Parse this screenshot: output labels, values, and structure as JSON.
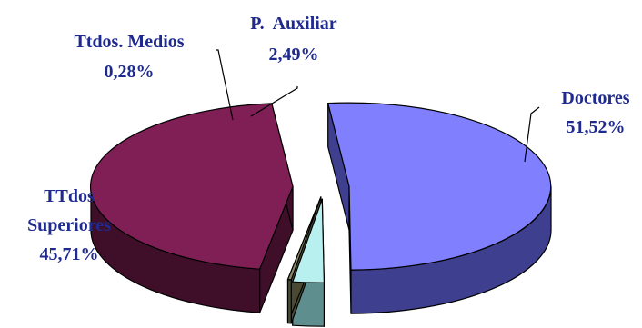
{
  "chart_data": {
    "type": "pie",
    "title": "",
    "slices": [
      {
        "label_lines": [
          "Doctores"
        ],
        "value_label": "51,52%",
        "value": 51.52,
        "color": "#8080ff",
        "side_color": "#3f3f8f"
      },
      {
        "label_lines": [
          "P.  Auxiliar"
        ],
        "value_label": "2,49%",
        "value": 2.49,
        "color": "#b8f0f0",
        "side_color": "#5e8e8e"
      },
      {
        "label_lines": [
          "Ttdos. Medios"
        ],
        "value_label": "0,28%",
        "value": 0.28,
        "color": "#8a8a6a",
        "side_color": "#4a4a33"
      },
      {
        "label_lines": [
          "TTdos",
          "Superiores"
        ],
        "value_label": "45,71%",
        "value": 45.71,
        "color": "#7f1f55",
        "side_color": "#3f0f2a"
      }
    ]
  }
}
